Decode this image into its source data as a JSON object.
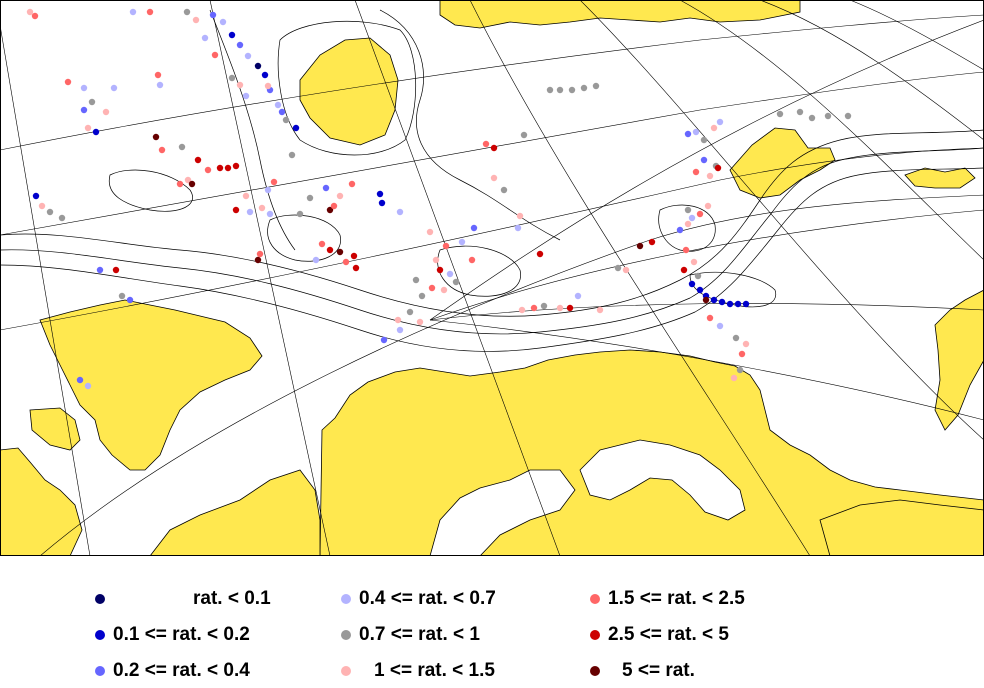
{
  "map": {
    "land_color": "#ffe84f",
    "coast_color": "#000000",
    "grid_color": "#000000",
    "contour_color": "#000000"
  },
  "legend": {
    "items": [
      {
        "label": "rat. < 0.1",
        "color": "#000066"
      },
      {
        "label": "0.1 <= rat. < 0.2",
        "color": "#0000cc"
      },
      {
        "label": "0.2 <= rat. < 0.4",
        "color": "#6666ff"
      },
      {
        "label": "0.4 <= rat. < 0.7",
        "color": "#b3b3ff"
      },
      {
        "label": "0.7 <= rat. < 1",
        "color": "#999999"
      },
      {
        "label": "1 <= rat. < 1.5",
        "color": "#ffb3b3"
      },
      {
        "label": "1.5 <= rat. < 2.5",
        "color": "#ff6666"
      },
      {
        "label": "2.5 <= rat. < 5",
        "color": "#cc0000"
      },
      {
        "label": "5 <= rat.",
        "color": "#660000"
      }
    ]
  }
}
